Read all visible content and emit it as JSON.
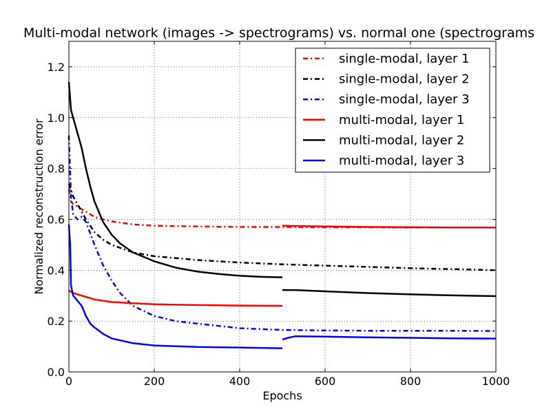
{
  "chart_data": {
    "type": "line",
    "title": "Multi-modal network (images -> spectrograms) vs. normal one (spectrograms",
    "xlabel": "Epochs",
    "ylabel": "Normalized reconstruction error",
    "xlim": [
      0,
      1000
    ],
    "ylim": [
      0,
      1.3
    ],
    "xticks": [
      0,
      200,
      400,
      600,
      800,
      1000
    ],
    "xtick_labels": [
      "0",
      "200",
      "400",
      "600",
      "800",
      "1000"
    ],
    "yticks": [
      0.0,
      0.2,
      0.4,
      0.6,
      0.8,
      1.0,
      1.2
    ],
    "ytick_labels": [
      "0.0",
      "0.2",
      "0.4",
      "0.6",
      "0.8",
      "1.0",
      "1.2"
    ],
    "grid": true,
    "legend_position": "top-right",
    "series": [
      {
        "name": "single-modal, layer 1",
        "color": "#ff0000",
        "style": "dashdot",
        "segments": [
          [
            [
              0,
              0.72
            ],
            [
              5,
              0.67
            ],
            [
              10,
              0.66
            ],
            [
              20,
              0.65
            ],
            [
              40,
              0.63
            ],
            [
              60,
              0.61
            ],
            [
              80,
              0.6
            ],
            [
              100,
              0.592
            ],
            [
              150,
              0.58
            ],
            [
              200,
              0.575
            ],
            [
              300,
              0.572
            ],
            [
              400,
              0.57
            ],
            [
              500,
              0.57
            ],
            [
              600,
              0.569
            ],
            [
              700,
              0.569
            ],
            [
              800,
              0.568
            ],
            [
              900,
              0.568
            ],
            [
              1000,
              0.568
            ]
          ]
        ]
      },
      {
        "name": "single-modal, layer 2",
        "color": "#000000",
        "style": "dashdot",
        "segments": [
          [
            [
              0,
              0.74
            ],
            [
              10,
              0.69
            ],
            [
              20,
              0.66
            ],
            [
              40,
              0.6
            ],
            [
              60,
              0.55
            ],
            [
              80,
              0.52
            ],
            [
              100,
              0.5
            ],
            [
              150,
              0.47
            ],
            [
              200,
              0.455
            ],
            [
              300,
              0.44
            ],
            [
              400,
              0.43
            ],
            [
              500,
              0.423
            ],
            [
              600,
              0.418
            ],
            [
              700,
              0.413
            ],
            [
              800,
              0.408
            ],
            [
              900,
              0.404
            ],
            [
              1000,
              0.4
            ]
          ]
        ]
      },
      {
        "name": "single-modal, layer 3",
        "color": "#0000ff",
        "style": "dashdot",
        "segments": [
          [
            [
              0,
              0.93
            ],
            [
              5,
              0.69
            ],
            [
              10,
              0.62
            ],
            [
              20,
              0.6
            ],
            [
              30,
              0.61
            ],
            [
              40,
              0.59
            ],
            [
              60,
              0.5
            ],
            [
              80,
              0.42
            ],
            [
              100,
              0.36
            ],
            [
              120,
              0.31
            ],
            [
              150,
              0.26
            ],
            [
              200,
              0.22
            ],
            [
              250,
              0.2
            ],
            [
              300,
              0.19
            ],
            [
              400,
              0.172
            ],
            [
              500,
              0.165
            ],
            [
              600,
              0.163
            ],
            [
              700,
              0.162
            ],
            [
              800,
              0.162
            ],
            [
              900,
              0.162
            ],
            [
              1000,
              0.161
            ]
          ]
        ]
      },
      {
        "name": "multi-modal, layer 1",
        "color": "#ff0000",
        "style": "solid",
        "segments": [
          [
            [
              0,
              0.32
            ],
            [
              10,
              0.31
            ],
            [
              30,
              0.3
            ],
            [
              60,
              0.285
            ],
            [
              100,
              0.275
            ],
            [
              150,
              0.27
            ],
            [
              200,
              0.266
            ],
            [
              300,
              0.263
            ],
            [
              400,
              0.261
            ],
            [
              500,
              0.26
            ]
          ],
          [
            [
              500,
              0.575
            ],
            [
              600,
              0.572
            ],
            [
              700,
              0.57
            ],
            [
              800,
              0.569
            ],
            [
              900,
              0.568
            ],
            [
              1000,
              0.568
            ]
          ]
        ]
      },
      {
        "name": "multi-modal, layer 2",
        "color": "#000000",
        "style": "solid",
        "segments": [
          [
            [
              0,
              1.14
            ],
            [
              5,
              1.03
            ],
            [
              10,
              1.0
            ],
            [
              20,
              0.94
            ],
            [
              30,
              0.88
            ],
            [
              40,
              0.8
            ],
            [
              50,
              0.73
            ],
            [
              60,
              0.67
            ],
            [
              80,
              0.59
            ],
            [
              100,
              0.54
            ],
            [
              120,
              0.505
            ],
            [
              150,
              0.47
            ],
            [
              200,
              0.435
            ],
            [
              250,
              0.41
            ],
            [
              300,
              0.395
            ],
            [
              350,
              0.385
            ],
            [
              400,
              0.378
            ],
            [
              450,
              0.374
            ],
            [
              500,
              0.372
            ]
          ],
          [
            [
              500,
              0.322
            ],
            [
              530,
              0.322
            ],
            [
              600,
              0.317
            ],
            [
              700,
              0.31
            ],
            [
              800,
              0.305
            ],
            [
              900,
              0.301
            ],
            [
              1000,
              0.298
            ]
          ]
        ]
      },
      {
        "name": "multi-modal, layer 3",
        "color": "#0000ff",
        "style": "solid",
        "segments": [
          [
            [
              0,
              0.58
            ],
            [
              3,
              0.5
            ],
            [
              5,
              0.34
            ],
            [
              10,
              0.3
            ],
            [
              20,
              0.28
            ],
            [
              30,
              0.26
            ],
            [
              40,
              0.22
            ],
            [
              50,
              0.19
            ],
            [
              60,
              0.175
            ],
            [
              80,
              0.15
            ],
            [
              100,
              0.132
            ],
            [
              150,
              0.113
            ],
            [
              200,
              0.104
            ],
            [
              300,
              0.098
            ],
            [
              400,
              0.096
            ],
            [
              500,
              0.093
            ]
          ],
          [
            [
              500,
              0.127
            ],
            [
              515,
              0.135
            ],
            [
              530,
              0.14
            ],
            [
              600,
              0.139
            ],
            [
              700,
              0.136
            ],
            [
              800,
              0.134
            ],
            [
              900,
              0.132
            ],
            [
              1000,
              0.131
            ]
          ]
        ]
      }
    ]
  }
}
